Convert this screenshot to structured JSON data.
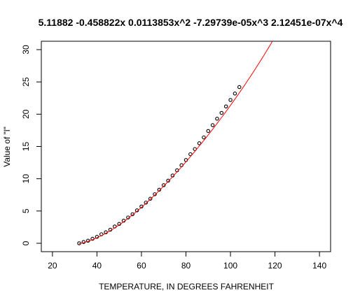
{
  "chart_data": {
    "type": "line",
    "title": "5.11882 -0.458822x 0.0113853x^2 -7.29739e-05x^3 2.12451e-07x^4",
    "xlabel": "TEMPERATURE, IN DEGREES FAHRENHEIT",
    "ylabel": "Value of \"l\"",
    "xlim": [
      15,
      145
    ],
    "ylim": [
      -1.3,
      31.3
    ],
    "x_ticks": [
      20,
      40,
      60,
      80,
      100,
      120,
      140
    ],
    "y_ticks": [
      0,
      5,
      10,
      15,
      20,
      25,
      30
    ],
    "grid": false,
    "colors": {
      "points": "#000000",
      "curve": "#ff0000"
    },
    "fit": {
      "coefficients": [
        5.11882,
        -0.458822,
        0.0113853,
        -7.29739e-05,
        2.12451e-07
      ],
      "x_range": [
        32,
        120
      ]
    },
    "series": [
      {
        "style": "points",
        "x": [
          32,
          34,
          36,
          38,
          40,
          42,
          44,
          46,
          48,
          50,
          52,
          54,
          56,
          58,
          60,
          62,
          64,
          66,
          68,
          70,
          72,
          74,
          76,
          78,
          80,
          82,
          84,
          86,
          88,
          90,
          92,
          94,
          96,
          98,
          100,
          102,
          104
        ],
        "y": [
          0.0,
          0.2,
          0.4,
          0.7,
          1.0,
          1.4,
          1.7,
          2.1,
          2.6,
          3.0,
          3.5,
          4.0,
          4.5,
          5.1,
          5.7,
          6.3,
          6.9,
          7.6,
          8.3,
          9.0,
          9.7,
          10.5,
          11.3,
          12.1,
          12.9,
          13.8,
          14.6,
          15.5,
          16.4,
          17.4,
          18.3,
          19.3,
          20.2,
          21.2,
          22.2,
          23.2,
          24.2
        ]
      },
      {
        "style": "line",
        "x": [
          32,
          36,
          40,
          44,
          48,
          52,
          56,
          60,
          64,
          68,
          72,
          76,
          80,
          84,
          88,
          92,
          96,
          100,
          104,
          108,
          112,
          116,
          120
        ],
        "y": [
          0.0,
          0.4,
          1.0,
          1.7,
          2.6,
          3.5,
          4.5,
          5.7,
          6.9,
          8.3,
          9.7,
          11.3,
          12.9,
          14.6,
          16.4,
          18.3,
          20.2,
          22.2,
          24.2,
          26.2,
          28.1,
          30.0,
          31.8
        ]
      }
    ]
  }
}
